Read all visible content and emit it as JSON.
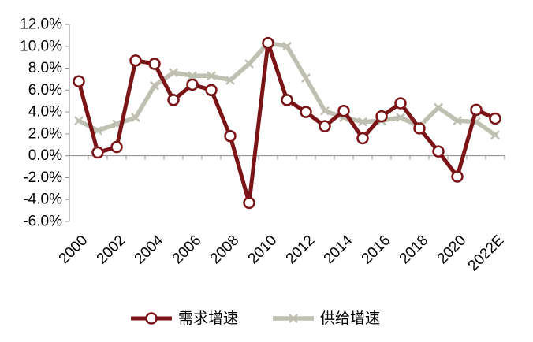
{
  "chart_data": {
    "type": "line",
    "title": "",
    "xlabel": "",
    "ylabel": "",
    "categories": [
      "2000",
      "2001",
      "2002",
      "2003",
      "2004",
      "2005",
      "2006",
      "2007",
      "2008",
      "2009",
      "2010",
      "2011",
      "2012",
      "2013",
      "2014",
      "2015",
      "2016",
      "2017",
      "2018",
      "2019",
      "2020",
      "2021",
      "2022E"
    ],
    "x_tick_labels": [
      "2000",
      "2002",
      "2004",
      "2006",
      "2008",
      "2010",
      "2012",
      "2014",
      "2016",
      "2018",
      "2020",
      "2022E"
    ],
    "ylim": [
      -6.0,
      12.0
    ],
    "y_ticks": [
      -6.0,
      -4.0,
      -2.0,
      0.0,
      2.0,
      4.0,
      6.0,
      8.0,
      10.0,
      12.0
    ],
    "y_tick_labels": [
      "-6.0%",
      "-4.0%",
      "-2.0%",
      "0.0%",
      "2.0%",
      "4.0%",
      "6.0%",
      "8.0%",
      "10.0%",
      "12.0%"
    ],
    "grid": false,
    "legend_position": "bottom",
    "series": [
      {
        "name": "需求增速",
        "color": "#7b1416",
        "marker": "hollow-circle",
        "values": [
          6.8,
          0.3,
          0.8,
          8.7,
          8.4,
          5.1,
          6.5,
          6.0,
          1.8,
          -4.3,
          10.3,
          5.1,
          4.0,
          2.7,
          4.1,
          1.6,
          3.6,
          4.8,
          2.5,
          0.4,
          -1.9,
          4.2,
          3.4
        ]
      },
      {
        "name": "供给增速",
        "color": "#bfbfb2",
        "marker": "x",
        "values": [
          3.2,
          2.3,
          2.9,
          3.5,
          6.4,
          7.6,
          7.3,
          7.3,
          6.9,
          8.4,
          10.3,
          10.0,
          7.1,
          4.1,
          3.5,
          3.1,
          3.2,
          3.5,
          2.7,
          4.4,
          3.2,
          3.1,
          1.9
        ]
      }
    ]
  }
}
